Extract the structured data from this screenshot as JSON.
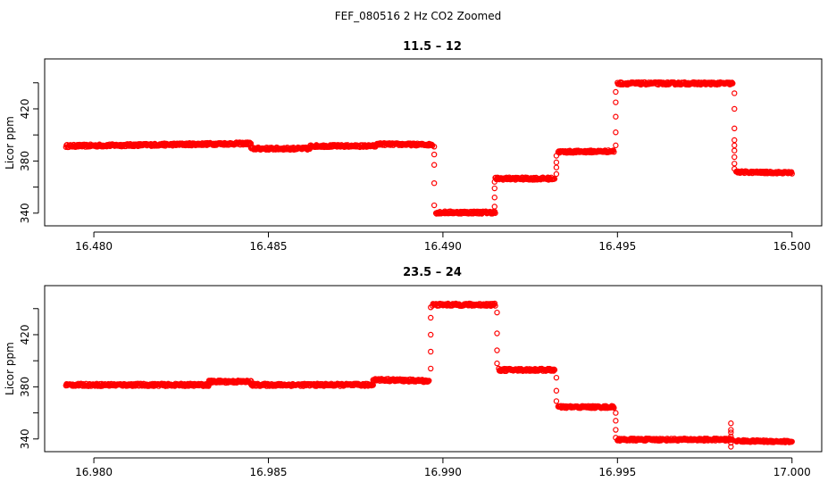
{
  "figure_title": "FEF_080516  2 Hz CO2 Zoomed",
  "colors": {
    "points": "#ff0000",
    "axes": "#000000",
    "background": "#ffffff"
  },
  "chart_data": [
    {
      "type": "scatter",
      "title": "11.5 – 12",
      "xlabel": "",
      "ylabel": "Licor ppm",
      "xlim": [
        16.479,
        16.5008
      ],
      "ylim": [
        333,
        446
      ],
      "x_ticks": [
        16.48,
        16.485,
        16.49,
        16.495,
        16.5
      ],
      "x_tick_labels": [
        "16.480",
        "16.485",
        "16.490",
        "16.495",
        "16.500"
      ],
      "y_ticks": [
        340,
        360,
        380,
        400,
        420,
        440
      ],
      "y_tick_labels": [
        "340",
        "",
        "380",
        "",
        "420",
        ""
      ],
      "marker": "open-circle",
      "segments": [
        {
          "x": [
            16.4792,
            16.4845
          ],
          "y": [
            391.5,
            393.5
          ],
          "noise": 1.0
        },
        {
          "x": [
            16.4845,
            16.4862
          ],
          "y": [
            389.5,
            389.5
          ],
          "noise": 1.0
        },
        {
          "x": [
            16.4862,
            16.4881
          ],
          "y": [
            391.5,
            391.5
          ],
          "noise": 0.9
        },
        {
          "x": [
            16.4881,
            16.4897
          ],
          "y": [
            393.0,
            392.5
          ],
          "noise": 0.9
        },
        {
          "x": [
            16.4898,
            16.4915
          ],
          "y": [
            340.5,
            340.5
          ],
          "noise": 1.0
        },
        {
          "x": [
            16.4915,
            16.4932
          ],
          "y": [
            366.5,
            366.5
          ],
          "noise": 1.0
        },
        {
          "x": [
            16.4933,
            16.4949
          ],
          "y": [
            387.0,
            387.5
          ],
          "noise": 0.9
        },
        {
          "x": [
            16.495,
            16.4983
          ],
          "y": [
            439.5,
            439.5
          ],
          "noise": 1.0
        },
        {
          "x": [
            16.4984,
            16.5
          ],
          "y": [
            371.5,
            371.0
          ],
          "noise": 0.8
        }
      ],
      "transitions": [
        {
          "x": 16.48975,
          "y": [
            391,
            385,
            377,
            363,
            346
          ]
        },
        {
          "x": 16.49148,
          "y": [
            345,
            352,
            359,
            364
          ]
        },
        {
          "x": 16.49325,
          "y": [
            370,
            375,
            379,
            384
          ]
        },
        {
          "x": 16.49495,
          "y": [
            392,
            402,
            414,
            425,
            433
          ]
        },
        {
          "x": 16.49835,
          "y": [
            432,
            420,
            405,
            396,
            392,
            388,
            383,
            378,
            374
          ]
        }
      ]
    },
    {
      "type": "scatter",
      "title": "23.5 – 24",
      "xlabel": "",
      "ylabel": "Licor ppm",
      "xlim": [
        16.979,
        17.0008
      ],
      "ylim": [
        333,
        446
      ],
      "x_ticks": [
        16.98,
        16.985,
        16.99,
        16.995,
        17.0
      ],
      "x_tick_labels": [
        "16.980",
        "16.985",
        "16.990",
        "16.995",
        "17.000"
      ],
      "y_ticks": [
        340,
        360,
        380,
        400,
        420,
        440
      ],
      "y_tick_labels": [
        "340",
        "",
        "380",
        "",
        "420",
        ""
      ],
      "marker": "open-circle",
      "segments": [
        {
          "x": [
            16.9792,
            16.9833
          ],
          "y": [
            381.5,
            381.5
          ],
          "noise": 1.0
        },
        {
          "x": [
            16.9833,
            16.9845
          ],
          "y": [
            384.0,
            384.0
          ],
          "noise": 1.0
        },
        {
          "x": [
            16.9845,
            16.988
          ],
          "y": [
            381.5,
            381.5
          ],
          "noise": 1.0
        },
        {
          "x": [
            16.988,
            16.9896
          ],
          "y": [
            385.5,
            384.5
          ],
          "noise": 1.0
        },
        {
          "x": [
            16.9897,
            16.9915
          ],
          "y": [
            443.0,
            443.0
          ],
          "noise": 1.0
        },
        {
          "x": [
            16.9916,
            16.9932
          ],
          "y": [
            393.0,
            393.0
          ],
          "noise": 1.0
        },
        {
          "x": [
            16.9933,
            16.9949
          ],
          "y": [
            364.5,
            364.5
          ],
          "noise": 0.9
        },
        {
          "x": [
            16.995,
            16.9983
          ],
          "y": [
            339.5,
            339.5
          ],
          "noise": 0.9
        },
        {
          "x": [
            16.9984,
            17.0
          ],
          "y": [
            338.5,
            338.0
          ],
          "noise": 0.8
        }
      ],
      "transitions": [
        {
          "x": 16.98965,
          "y": [
            394,
            407,
            420,
            433,
            441
          ]
        },
        {
          "x": 16.99155,
          "y": [
            437,
            421,
            408,
            398
          ]
        },
        {
          "x": 16.99325,
          "y": [
            387,
            377,
            369
          ]
        },
        {
          "x": 16.99495,
          "y": [
            360,
            354,
            347,
            341
          ]
        },
        {
          "x": 16.99825,
          "y": [
            334,
            337,
            345,
            352,
            347,
            342
          ]
        }
      ]
    }
  ]
}
